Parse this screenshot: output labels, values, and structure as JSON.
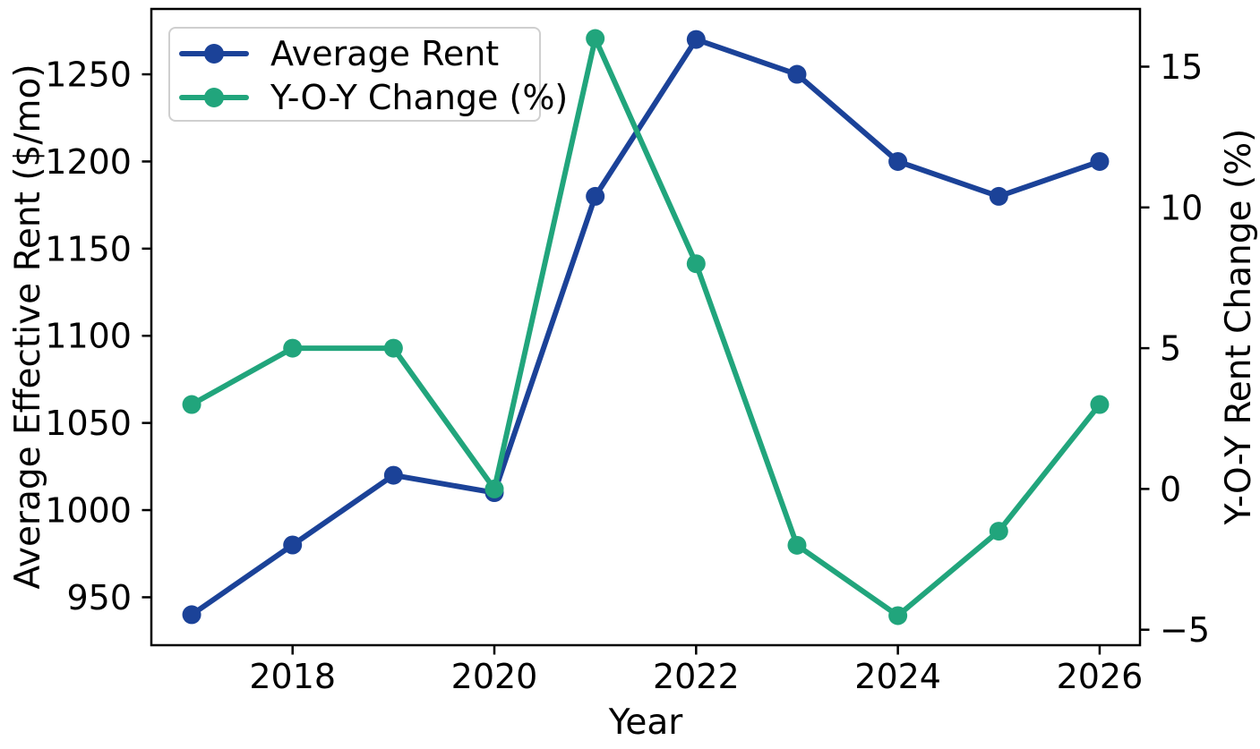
{
  "chart_data": {
    "type": "line",
    "title": "",
    "x": [
      2017,
      2018,
      2019,
      2020,
      2021,
      2022,
      2023,
      2024,
      2025,
      2026
    ],
    "series": [
      {
        "name": "Average Rent",
        "axis": "left",
        "color": "#1b4298",
        "marker": "circle",
        "values": [
          940,
          980,
          1020,
          1010,
          1180,
          1270,
          1250,
          1200,
          1180,
          1200
        ]
      },
      {
        "name": "Y-O-Y Change (%)",
        "axis": "right",
        "color": "#21a57c",
        "marker": "circle",
        "values": [
          3,
          5,
          5,
          0,
          16,
          8,
          -2,
          -4.5,
          -1.5,
          3
        ]
      }
    ],
    "x_axis": {
      "label": "Year",
      "ticks": [
        2018,
        2020,
        2022,
        2024,
        2026
      ],
      "range": [
        2016.6,
        2026.4
      ]
    },
    "left_axis": {
      "label": "Average Effective Rent ($/mo)",
      "ticks": [
        950,
        1000,
        1050,
        1100,
        1150,
        1200,
        1250
      ],
      "range": [
        922.5,
        1287.5
      ]
    },
    "right_axis": {
      "label": "Y-O-Y Rent Change (%)",
      "ticks": [
        -5,
        0,
        5,
        10,
        15
      ],
      "range": [
        -5.55,
        17.05
      ]
    },
    "grid": false,
    "legend_position": "upper left",
    "background_color": "#ffffff",
    "axis_color": "#000000"
  }
}
